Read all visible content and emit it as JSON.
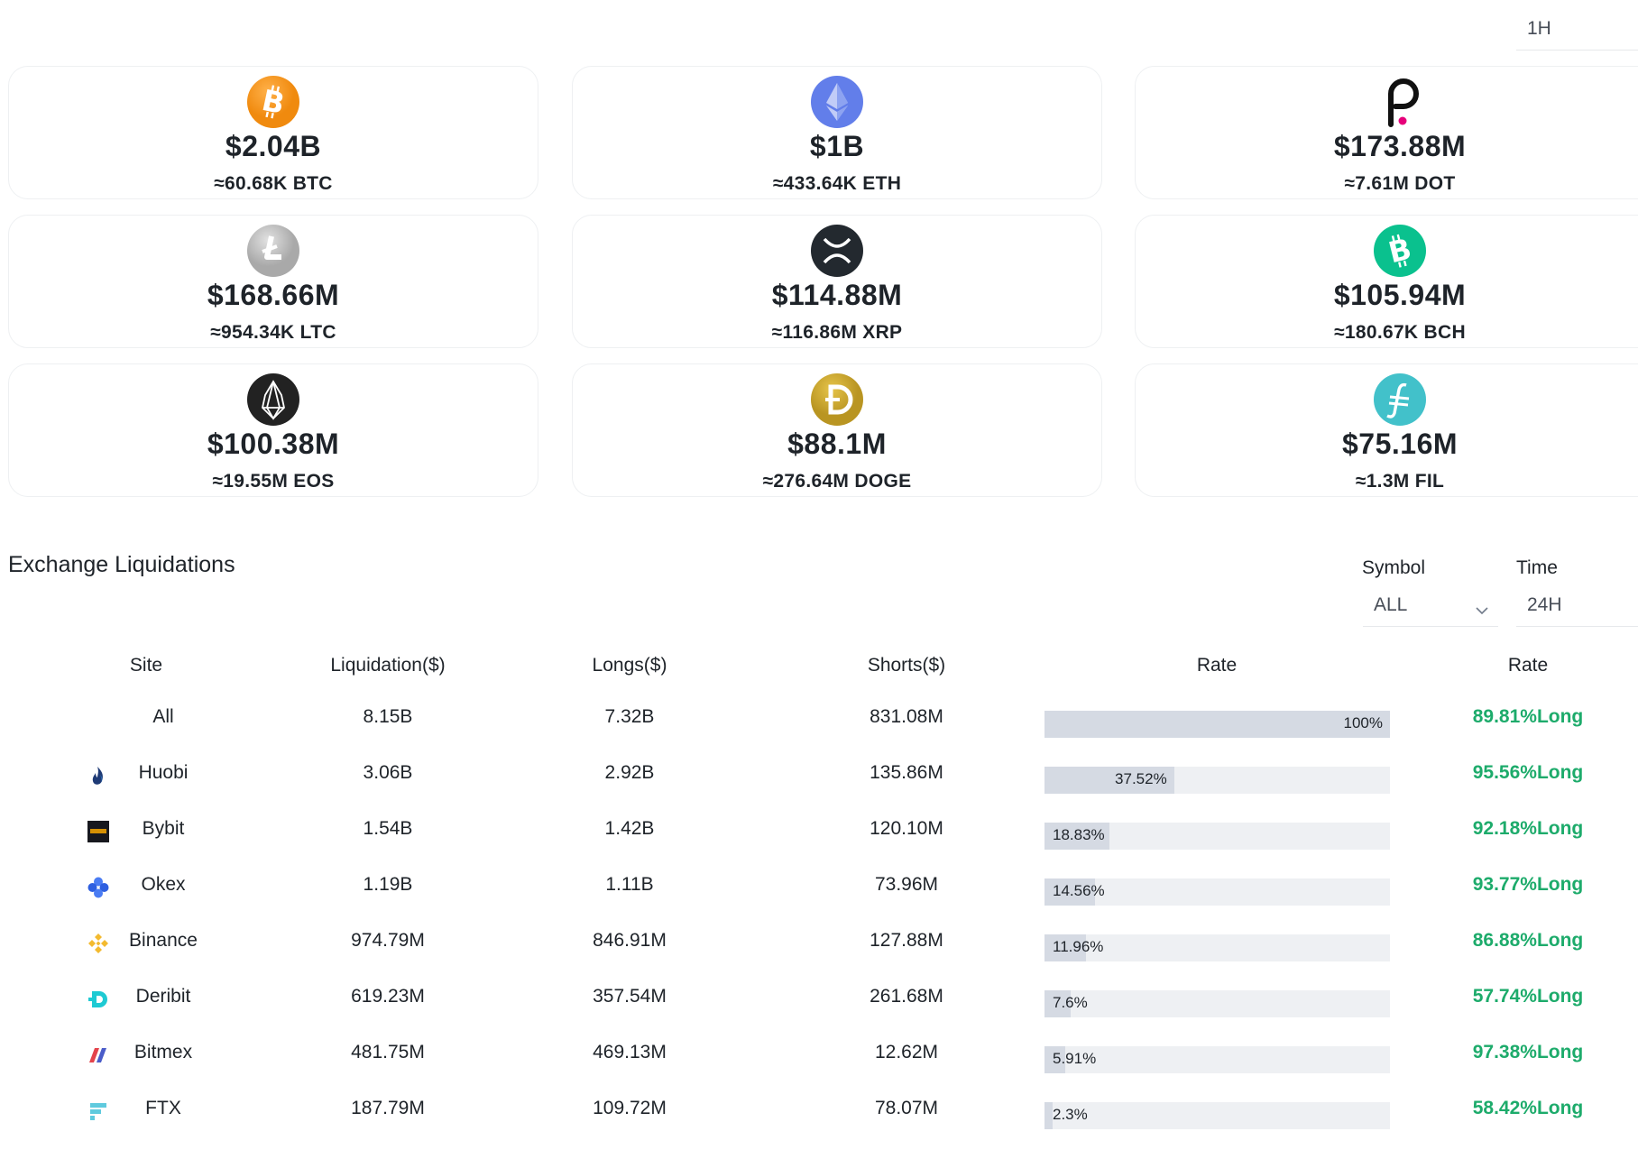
{
  "top_time_select": {
    "value": "1H"
  },
  "coin_cards": [
    {
      "amount": "$2.04B",
      "sub": "≈60.68K BTC",
      "icon": "bitcoin-icon",
      "color": "#f7931a"
    },
    {
      "amount": "$1B",
      "sub": "≈433.64K ETH",
      "icon": "ethereum-icon",
      "color": "#627eea"
    },
    {
      "amount": "$173.88M",
      "sub": "≈7.61M DOT",
      "icon": "polkadot-icon",
      "color": "#e6007a"
    },
    {
      "amount": "$168.66M",
      "sub": "≈954.34K LTC",
      "icon": "litecoin-icon",
      "color": "#bfbbbb"
    },
    {
      "amount": "$114.88M",
      "sub": "≈116.86M XRP",
      "icon": "xrp-icon",
      "color": "#23292f"
    },
    {
      "amount": "$105.94M",
      "sub": "≈180.67K BCH",
      "icon": "bitcoin-cash-icon",
      "color": "#0ac18e"
    },
    {
      "amount": "$100.38M",
      "sub": "≈19.55M EOS",
      "icon": "eos-icon",
      "color": "#222222"
    },
    {
      "amount": "$88.1M",
      "sub": "≈276.64M DOGE",
      "icon": "dogecoin-icon",
      "color": "#c2a633"
    },
    {
      "amount": "$75.16M",
      "sub": "≈1.3M FIL",
      "icon": "filecoin-icon",
      "color": "#42c1ca"
    }
  ],
  "exchange": {
    "title": "Exchange Liquidations",
    "symbol_label": "Symbol",
    "symbol_value": "ALL",
    "time_label": "Time",
    "time_value": "24H",
    "headers": [
      "Site",
      "Liquidation($)",
      "Longs($)",
      "Shorts($)",
      "Rate",
      "Rate"
    ],
    "rows": [
      {
        "site": "All",
        "liquidation": "8.15B",
        "longs": "7.32B",
        "shorts": "831.08M",
        "share": "100%",
        "share_value": 100,
        "long_rate": "89.81%Long",
        "icon": ""
      },
      {
        "site": "Huobi",
        "liquidation": "3.06B",
        "longs": "2.92B",
        "shorts": "135.86M",
        "share": "37.52%",
        "share_value": 37.52,
        "long_rate": "95.56%Long",
        "icon": "huobi-icon"
      },
      {
        "site": "Bybit",
        "liquidation": "1.54B",
        "longs": "1.42B",
        "shorts": "120.10M",
        "share": "18.83%",
        "share_value": 18.83,
        "long_rate": "92.18%Long",
        "icon": "bybit-icon"
      },
      {
        "site": "Okex",
        "liquidation": "1.19B",
        "longs": "1.11B",
        "shorts": "73.96M",
        "share": "14.56%",
        "share_value": 14.56,
        "long_rate": "93.77%Long",
        "icon": "okex-icon"
      },
      {
        "site": "Binance",
        "liquidation": "974.79M",
        "longs": "846.91M",
        "shorts": "127.88M",
        "share": "11.96%",
        "share_value": 11.96,
        "long_rate": "86.88%Long",
        "icon": "binance-icon"
      },
      {
        "site": "Deribit",
        "liquidation": "619.23M",
        "longs": "357.54M",
        "shorts": "261.68M",
        "share": "7.6%",
        "share_value": 7.6,
        "long_rate": "57.74%Long",
        "icon": "deribit-icon"
      },
      {
        "site": "Bitmex",
        "liquidation": "481.75M",
        "longs": "469.13M",
        "shorts": "12.62M",
        "share": "5.91%",
        "share_value": 5.91,
        "long_rate": "97.38%Long",
        "icon": "bitmex-icon"
      },
      {
        "site": "FTX",
        "liquidation": "187.79M",
        "longs": "109.72M",
        "shorts": "78.07M",
        "share": "2.3%",
        "share_value": 2.3,
        "long_rate": "58.42%Long",
        "icon": "ftx-icon"
      }
    ]
  },
  "colors": {
    "long_green": "#1dab6b",
    "bar_fill": "#d5dae3",
    "bar_track": "#eef0f3"
  }
}
